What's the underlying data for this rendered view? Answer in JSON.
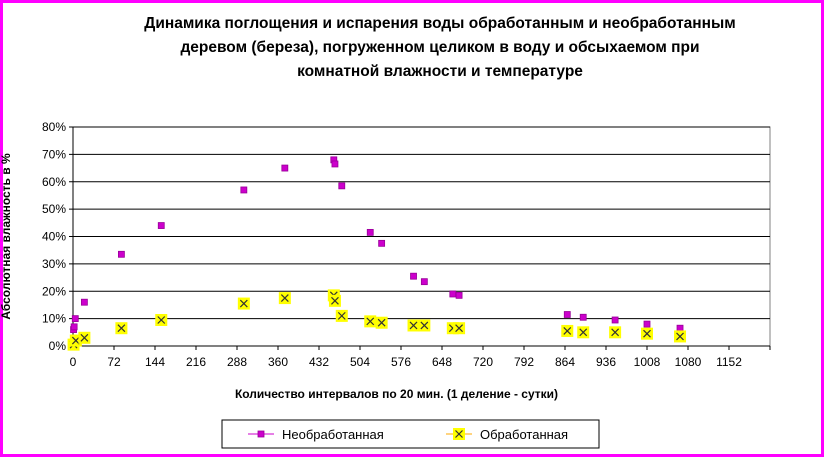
{
  "chart_data": {
    "type": "scatter",
    "title": "Динамика поглощения и испарения воды обработанным и необработанным деревом (береза), погруженном целиком в воду и обсыхаемом при комнатной влажности и температуре",
    "title_lines": [
      "Динамика поглощения и испарения воды обработанным и необработанным",
      "деревом (береза), погруженном целиком в воду и обсыхаемом при",
      "комнатной влажности и температуре"
    ],
    "xlabel": "Количество интервалов по 20 мин. (1 деление - сутки)",
    "ylabel": "Абсолютная влажность в %",
    "xlim": [
      0,
      1224
    ],
    "ylim": [
      0,
      0.8
    ],
    "x_ticks": [
      0,
      72,
      144,
      216,
      288,
      360,
      432,
      504,
      576,
      648,
      720,
      792,
      864,
      936,
      1008,
      1080,
      1152
    ],
    "y_ticks": [
      0,
      0.1,
      0.2,
      0.3,
      0.4,
      0.5,
      0.6,
      0.7,
      0.8
    ],
    "y_tick_labels": [
      "0%",
      "10%",
      "20%",
      "30%",
      "40%",
      "50%",
      "60%",
      "70%",
      "80%"
    ],
    "grid": "horizontal",
    "legend_position": "bottom",
    "series": [
      {
        "name": "Необработанная",
        "color": "#cc00cc",
        "marker": "square",
        "points": [
          [
            1,
            0.06
          ],
          [
            2,
            0.07
          ],
          [
            4,
            0.1
          ],
          [
            20,
            0.16
          ],
          [
            85,
            0.335
          ],
          [
            155,
            0.44
          ],
          [
            300,
            0.57
          ],
          [
            372,
            0.65
          ],
          [
            458,
            0.68
          ],
          [
            460,
            0.665
          ],
          [
            472,
            0.585
          ],
          [
            522,
            0.415
          ],
          [
            542,
            0.375
          ],
          [
            598,
            0.255
          ],
          [
            617,
            0.235
          ],
          [
            667,
            0.19
          ],
          [
            678,
            0.185
          ],
          [
            868,
            0.115
          ],
          [
            896,
            0.105
          ],
          [
            952,
            0.095
          ],
          [
            1008,
            0.08
          ],
          [
            1066,
            0.065
          ]
        ]
      },
      {
        "name": "Обработанная",
        "color": "#ffff00",
        "marker": "x-box",
        "points": [
          [
            1,
            0.005
          ],
          [
            5,
            0.02
          ],
          [
            20,
            0.03
          ],
          [
            85,
            0.065
          ],
          [
            155,
            0.095
          ],
          [
            300,
            0.155
          ],
          [
            372,
            0.175
          ],
          [
            458,
            0.185
          ],
          [
            460,
            0.165
          ],
          [
            472,
            0.11
          ],
          [
            522,
            0.09
          ],
          [
            542,
            0.085
          ],
          [
            598,
            0.075
          ],
          [
            617,
            0.075
          ],
          [
            667,
            0.065
          ],
          [
            678,
            0.065
          ],
          [
            868,
            0.055
          ],
          [
            896,
            0.05
          ],
          [
            952,
            0.05
          ],
          [
            1008,
            0.045
          ],
          [
            1066,
            0.035
          ]
        ]
      }
    ]
  }
}
